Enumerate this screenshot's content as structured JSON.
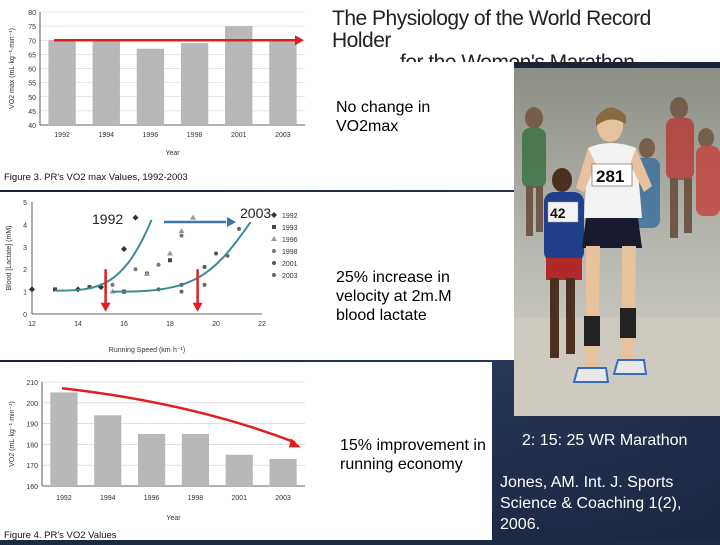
{
  "title": {
    "line1": "The Physiology of the World Record Holder",
    "line2": "for the Women's Marathon"
  },
  "notes": {
    "vo2": "No change in VO2max",
    "lactate": "25% increase in velocity at 2m.M blood lactate",
    "economy": "15% improvement in running economy"
  },
  "annotations": {
    "year_start": "1992",
    "year_end": "2003"
  },
  "reference": {
    "record": "2: 15: 25 WR Marathon",
    "citation": "Jones, AM.  Int. J. Sports Science & Coaching 1(2), 2006."
  },
  "photo": {
    "bib_main": "281",
    "bib_side": "42"
  },
  "colors": {
    "bar": "#b8b8b8",
    "arrow_red": "#e02020",
    "arrow_blue": "#3a78a8",
    "curve_teal": "#3d8a96"
  },
  "chart_data": [
    {
      "type": "bar",
      "caption": "Figure 3. PR's VO2 max Values, 1992-2003",
      "xlabel": "Year",
      "ylabel": "VO2 max (mL·kg⁻¹·min⁻¹)",
      "ylim": [
        40,
        80
      ],
      "yticks": [
        "40",
        "45",
        "50",
        "55",
        "60",
        "65",
        "70",
        "75",
        "80"
      ],
      "categories": [
        "1992",
        "1994",
        "1996",
        "1998",
        "2001",
        "2003"
      ],
      "values": [
        70,
        70,
        67,
        69,
        75,
        70
      ],
      "grid": true
    },
    {
      "type": "scatter",
      "xlabel": "Running Speed (km·h⁻¹)",
      "ylabel": "Blood [Lactate] (mM)",
      "xlim": [
        12,
        22
      ],
      "ylim": [
        0,
        5
      ],
      "xticks": [
        "12",
        "14",
        "16",
        "18",
        "20",
        "22"
      ],
      "yticks": [
        "0",
        "1",
        "2",
        "3",
        "4",
        "5"
      ],
      "legend": [
        "1992",
        "1993",
        "1996",
        "1998",
        "2001",
        "2003"
      ],
      "legend_position": "right",
      "series": [
        {
          "name": "1992",
          "x": [
            12,
            14,
            15,
            16,
            16.5
          ],
          "y": [
            1.1,
            1.1,
            1.2,
            2.9,
            4.3
          ]
        },
        {
          "name": "1993",
          "x": [
            13,
            14.5,
            16,
            17,
            18
          ],
          "y": [
            1.1,
            1.2,
            1.0,
            1.8,
            2.4
          ]
        },
        {
          "name": "1996",
          "x": [
            15.5,
            17,
            18,
            18.5,
            19
          ],
          "y": [
            1.0,
            1.8,
            2.7,
            3.7,
            4.3
          ]
        },
        {
          "name": "1998",
          "x": [
            15.5,
            16.5,
            17.5,
            18.5
          ],
          "y": [
            1.3,
            2.0,
            2.2,
            3.5
          ]
        },
        {
          "name": "2001",
          "x": [
            17.5,
            18.5,
            19.5,
            20
          ],
          "y": [
            1.1,
            1.3,
            2.1,
            2.7
          ]
        },
        {
          "name": "2003",
          "x": [
            18.5,
            19.5,
            20.5,
            21
          ],
          "y": [
            1.0,
            1.3,
            2.6,
            3.8
          ]
        }
      ]
    },
    {
      "type": "bar",
      "caption": "Figure 4. PR's VO2 Values",
      "xlabel": "Year",
      "ylabel": "VO2 (mL·kg⁻¹·min⁻¹)",
      "ylim": [
        160,
        210
      ],
      "yticks": [
        "160",
        "170",
        "180",
        "190",
        "200",
        "210"
      ],
      "categories": [
        "1992",
        "1994",
        "1996",
        "1998",
        "2001",
        "2003"
      ],
      "values": [
        205,
        194,
        185,
        185,
        175,
        173
      ],
      "grid": true
    }
  ]
}
